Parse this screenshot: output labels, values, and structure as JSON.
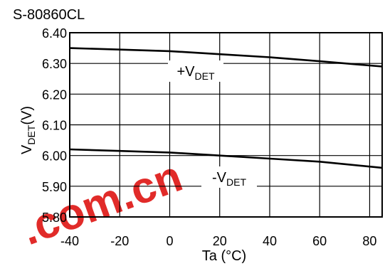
{
  "chart_data": {
    "type": "line",
    "title": "S-80860CL",
    "xlabel": "Ta (°C)",
    "ylabel": {
      "main": "V",
      "sub": "DET",
      "tail": "(V)"
    },
    "xlim": [
      -40,
      85
    ],
    "ylim": [
      5.8,
      6.4
    ],
    "xticks": [
      -40,
      -20,
      0,
      20,
      40,
      60,
      80
    ],
    "yticks": [
      "5.80",
      "5.90",
      "6.00",
      "6.10",
      "6.20",
      "6.30",
      "6.40"
    ],
    "grid": true,
    "series": [
      {
        "label": {
          "main": "+V",
          "sub": "DET"
        },
        "x": [
          -40,
          -20,
          0,
          20,
          40,
          60,
          85
        ],
        "y": [
          6.35,
          6.345,
          6.34,
          6.33,
          6.32,
          6.307,
          6.29
        ]
      },
      {
        "label": {
          "main": "-V",
          "sub": "DET"
        },
        "x": [
          -40,
          -20,
          0,
          20,
          40,
          60,
          85
        ],
        "y": [
          6.02,
          6.015,
          6.01,
          6.0,
          5.99,
          5.98,
          5.96
        ]
      }
    ]
  },
  "watermark": {
    "text": ".com.cn",
    "color": "#e0201e"
  }
}
